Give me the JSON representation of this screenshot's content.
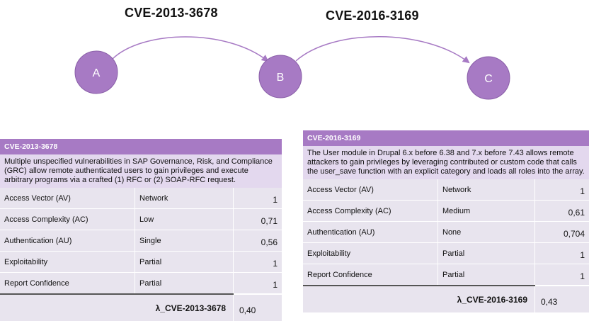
{
  "titles": {
    "left": "CVE-2013-3678",
    "right": "CVE-2016-3169"
  },
  "nodes": [
    {
      "label": "A"
    },
    {
      "label": "B"
    },
    {
      "label": "C"
    }
  ],
  "colors": {
    "node_fill": "#a77ac4",
    "header": "#a77ac4",
    "description_bg": "#e3d8ee",
    "row_bg": "#e8e4ee"
  },
  "table1": {
    "header": "CVE-2013-3678",
    "description": "Multiple unspecified vulnerabilities in SAP Governance, Risk, and Compliance (GRC) allow remote authenticated users to gain privileges and execute arbitrary programs via a crafted (1) RFC or (2) SOAP-RFC request.",
    "rows": [
      {
        "label": "Access Vector (AV)",
        "category": "Network",
        "value": "1"
      },
      {
        "label": "Access Complexity (AC)",
        "category": "Low",
        "value": "0,71"
      },
      {
        "label": "Authentication (AU)",
        "category": "Single",
        "value": "0,56"
      },
      {
        "label": "Exploitability",
        "category": "Partial",
        "value": "1"
      },
      {
        "label": "Report Confidence",
        "category": "Partial",
        "value": "1"
      }
    ],
    "lambda_label": "λ_CVE-2013-3678",
    "lambda_value": "0,40"
  },
  "table2": {
    "header": "CVE-2016-3169",
    "description": "The User module in Drupal 6.x before 6.38 and 7.x before 7.43 allows remote attackers to gain privileges by leveraging contributed or custom code that calls the user_save function with an explicit category and loads all roles into the array.",
    "rows": [
      {
        "label": "Access Vector (AV)",
        "category": "Network",
        "value": "1"
      },
      {
        "label": "Access Complexity (AC)",
        "category": "Medium",
        "value": "0,61"
      },
      {
        "label": "Authentication (AU)",
        "category": "None",
        "value": "0,704"
      },
      {
        "label": "Exploitability",
        "category": "Partial",
        "value": "1"
      },
      {
        "label": "Report Confidence",
        "category": "Partial",
        "value": "1"
      }
    ],
    "lambda_label": "λ_CVE-2016-3169",
    "lambda_value": "0,43"
  }
}
